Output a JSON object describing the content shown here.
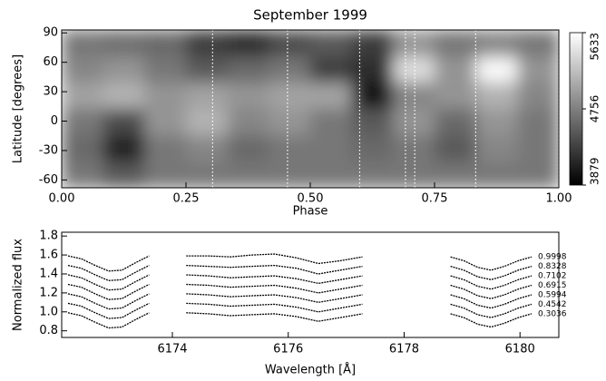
{
  "chart_data": [
    {
      "type": "heatmap",
      "title": "September 1999",
      "xlabel": "Phase",
      "ylabel": "Latitude [degrees]",
      "x_edges": [
        0,
        0.0833,
        0.1667,
        0.25,
        0.3333,
        0.4167,
        0.5,
        0.5833,
        0.6667,
        0.75,
        0.8333,
        0.9167,
        1
      ],
      "y_edges": [
        -68,
        -41,
        -14,
        13,
        40,
        66,
        93
      ],
      "values": [
        [
          4700,
          4500,
          4700,
          4700,
          4700,
          4700,
          4700,
          4700,
          4700,
          4700,
          4700,
          4700
        ],
        [
          4600,
          4100,
          4700,
          4800,
          4600,
          4700,
          4700,
          4600,
          4700,
          4500,
          4800,
          4700
        ],
        [
          4700,
          4400,
          4900,
          5100,
          4800,
          4900,
          4700,
          4500,
          4900,
          4600,
          4900,
          4700
        ],
        [
          5000,
          5100,
          4900,
          5000,
          4900,
          5000,
          5000,
          4000,
          4800,
          4900,
          5100,
          4800
        ],
        [
          4800,
          4900,
          4700,
          4500,
          4600,
          4700,
          4300,
          4200,
          5400,
          4900,
          5600,
          4900
        ],
        [
          4700,
          4650,
          4600,
          4300,
          4200,
          4400,
          4500,
          4300,
          4900,
          4700,
          4800,
          4700
        ]
      ],
      "vlines": [
        0.3036,
        0.4542,
        0.5994,
        0.6915,
        0.7102,
        0.8328,
        0.9998
      ],
      "xlim": [
        0,
        1
      ],
      "xticks": [
        {
          "value": 0,
          "label": "0.00"
        },
        {
          "value": 0.25,
          "label": "0.25"
        },
        {
          "value": 0.5,
          "label": "0.50"
        },
        {
          "value": 0.75,
          "label": "0.75"
        },
        {
          "value": 1,
          "label": "1.00"
        }
      ],
      "ylim": [
        -68,
        93
      ],
      "yticks": [
        -60,
        -30,
        0,
        30,
        60,
        90
      ],
      "zlim": [
        3879,
        5633
      ],
      "zticks": [
        3879,
        4756,
        5633
      ]
    },
    {
      "type": "line",
      "xlabel": "Wavelength [Å]",
      "ylabel": "Normalized flux",
      "x": [
        6172.2,
        6172.43,
        6172.67,
        6172.9,
        6173.13,
        6173.37,
        6173.6,
        6173.9,
        6174.24,
        6174.62,
        6175.0,
        6175.38,
        6175.76,
        6176.14,
        6176.52,
        6176.9,
        6177.28,
        6178.0,
        6178.8,
        6179.03,
        6179.27,
        6179.5,
        6179.73,
        6179.97,
        6180.2
      ],
      "series": [
        {
          "name": "0.9998",
          "color": "#000000",
          "values": [
            1.59,
            1.56,
            1.49,
            1.43,
            1.44,
            1.52,
            1.59,
            null,
            1.59,
            1.59,
            1.58,
            1.6,
            1.61,
            1.57,
            1.51,
            1.54,
            1.58,
            null,
            1.58,
            1.54,
            1.47,
            1.44,
            1.48,
            1.54,
            1.58
          ]
        },
        {
          "name": "0.8328",
          "color": "#000000",
          "values": [
            1.49,
            1.46,
            1.39,
            1.33,
            1.34,
            1.42,
            1.49,
            null,
            1.49,
            1.48,
            1.47,
            1.48,
            1.49,
            1.46,
            1.4,
            1.44,
            1.48,
            null,
            1.48,
            1.44,
            1.37,
            1.34,
            1.38,
            1.44,
            1.48
          ]
        },
        {
          "name": "0.7102",
          "color": "#000000",
          "values": [
            1.39,
            1.36,
            1.29,
            1.23,
            1.24,
            1.32,
            1.39,
            null,
            1.39,
            1.38,
            1.36,
            1.37,
            1.38,
            1.35,
            1.3,
            1.34,
            1.38,
            null,
            1.38,
            1.34,
            1.27,
            1.24,
            1.28,
            1.34,
            1.38
          ]
        },
        {
          "name": "0.6915",
          "color": "#000000",
          "values": [
            1.29,
            1.26,
            1.19,
            1.13,
            1.14,
            1.22,
            1.29,
            null,
            1.29,
            1.28,
            1.26,
            1.27,
            1.28,
            1.25,
            1.2,
            1.24,
            1.28,
            null,
            1.28,
            1.24,
            1.17,
            1.14,
            1.18,
            1.24,
            1.28
          ]
        },
        {
          "name": "0.5994",
          "color": "#000000",
          "values": [
            1.19,
            1.16,
            1.09,
            1.03,
            1.04,
            1.12,
            1.19,
            null,
            1.19,
            1.18,
            1.16,
            1.17,
            1.18,
            1.15,
            1.1,
            1.14,
            1.18,
            null,
            1.18,
            1.14,
            1.07,
            1.04,
            1.08,
            1.14,
            1.18
          ]
        },
        {
          "name": "0.4542",
          "color": "#000000",
          "values": [
            1.09,
            1.06,
            0.99,
            0.93,
            0.94,
            1.02,
            1.09,
            null,
            1.09,
            1.08,
            1.06,
            1.07,
            1.08,
            1.05,
            1.0,
            1.04,
            1.08,
            null,
            1.08,
            1.04,
            0.97,
            0.94,
            0.98,
            1.04,
            1.08
          ]
        },
        {
          "name": "0.3036",
          "color": "#000000",
          "values": [
            0.99,
            0.96,
            0.89,
            0.83,
            0.84,
            0.92,
            0.99,
            null,
            0.99,
            0.98,
            0.96,
            0.97,
            0.98,
            0.95,
            0.9,
            0.94,
            0.98,
            null,
            0.98,
            0.94,
            0.87,
            0.84,
            0.88,
            0.94,
            0.98
          ]
        }
      ],
      "xlim": [
        6172.09,
        6180.67
      ],
      "xticks": [
        6174,
        6176,
        6178,
        6180
      ],
      "ylim": [
        0.73,
        1.84
      ],
      "yticks": [
        0.8,
        {
          "value": 1,
          "label": "1.0"
        },
        1.2,
        1.4,
        1.6,
        1.8
      ]
    }
  ]
}
